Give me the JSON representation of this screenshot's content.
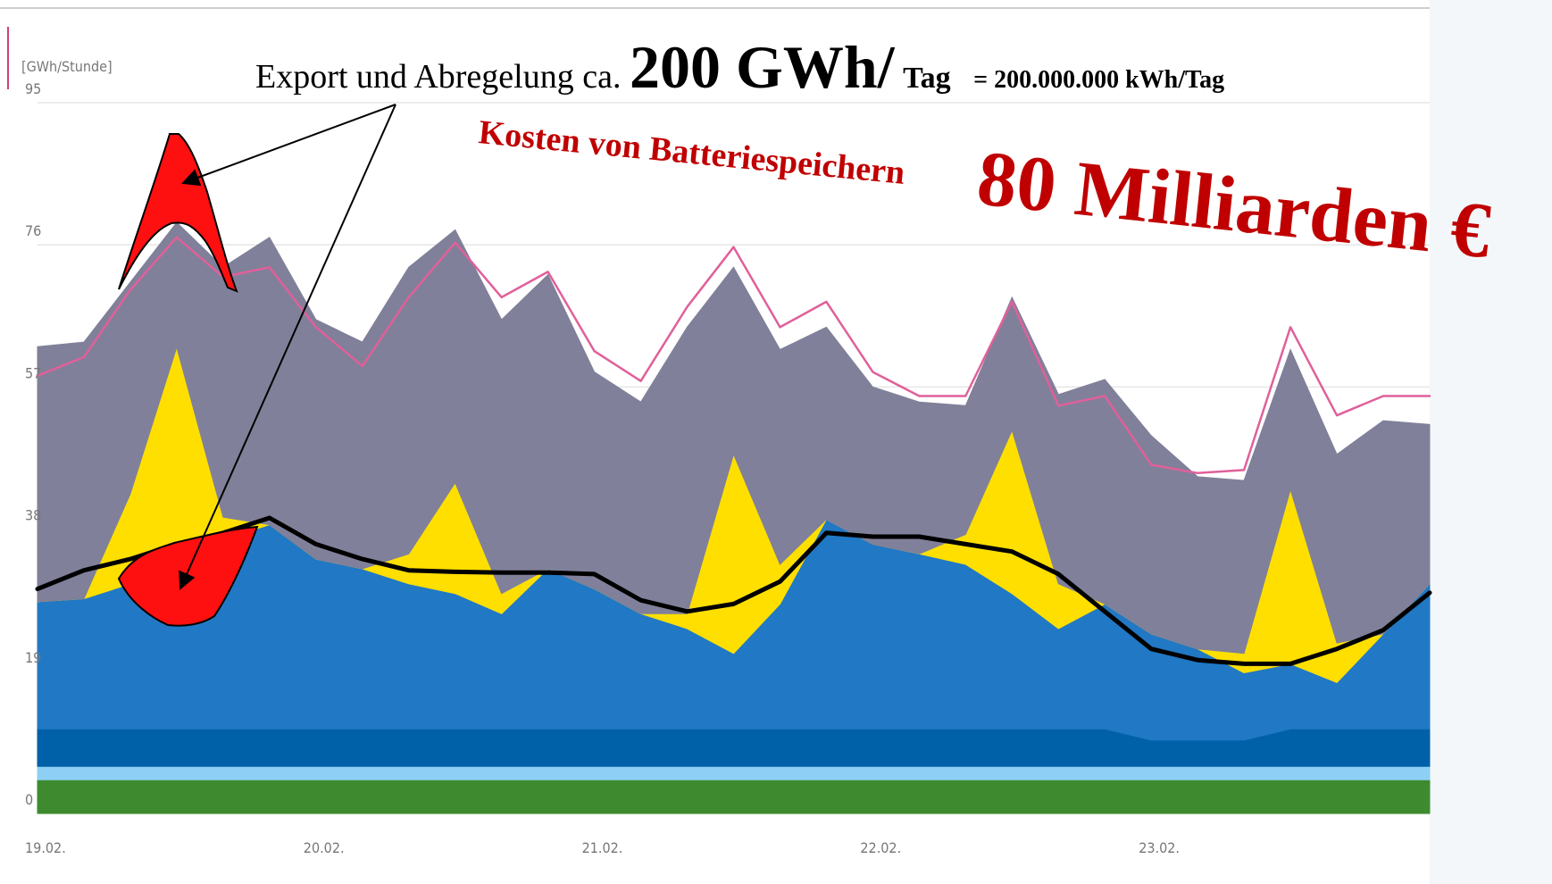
{
  "chart_data": {
    "type": "area",
    "stacked": true,
    "y_label": "[GWh/Stunde]",
    "categories": [
      "19.02.",
      null,
      null,
      null,
      null,
      null,
      "20.02.",
      null,
      null,
      null,
      null,
      null,
      "21.02.",
      null,
      null,
      null,
      null,
      null,
      "22.02.",
      null,
      null,
      null,
      null,
      null,
      "23.02.",
      null,
      null,
      null,
      null,
      null,
      null
    ],
    "ylim": [
      0,
      95
    ],
    "yticks": [
      0,
      19,
      38,
      57,
      76,
      95
    ],
    "grid": true,
    "series": [
      {
        "color": "#3e8b2f",
        "values": [
          4.5,
          4.5,
          4.5,
          4.5,
          4.5,
          4.5,
          4.5,
          4.5,
          4.5,
          4.5,
          4.5,
          4.5,
          4.5,
          4.5,
          4.5,
          4.5,
          4.5,
          4.5,
          4.5,
          4.5,
          4.5,
          4.5,
          4.5,
          4.5,
          4.5,
          4.5,
          4.5,
          4.5,
          4.5,
          4.5,
          4.5
        ]
      },
      {
        "color": "#8ed0f5",
        "values": [
          1.8,
          1.8,
          1.8,
          1.8,
          1.8,
          1.8,
          1.8,
          1.8,
          1.8,
          1.8,
          1.8,
          1.8,
          1.8,
          1.8,
          1.8,
          1.8,
          1.8,
          1.8,
          1.8,
          1.8,
          1.8,
          1.8,
          1.8,
          1.8,
          1.8,
          1.8,
          1.8,
          1.8,
          1.8,
          1.8,
          1.8
        ]
      },
      {
        "color": "#0060a8",
        "values": [
          5,
          5,
          5,
          5,
          5,
          5,
          5,
          5,
          5,
          5,
          5,
          5,
          5,
          5,
          5,
          5,
          5,
          5,
          5,
          5,
          5,
          5,
          5,
          5,
          3.5,
          3.5,
          3.5,
          5,
          5,
          5,
          5
        ]
      },
      {
        "color": "#2178c4",
        "values": [
          17,
          17.4,
          19.4,
          24,
          25.3,
          27.3,
          22.7,
          21.4,
          19.4,
          18.1,
          15.4,
          21.4,
          18.7,
          15.4,
          13.4,
          10.1,
          16.7,
          28,
          24.7,
          23.4,
          22,
          18.1,
          13.4,
          16.7,
          14.2,
          12.2,
          9,
          8.7,
          6.2,
          12.7,
          19.4
        ]
      },
      {
        "color": "#ffdf00",
        "values": [
          0,
          0,
          12,
          27,
          3,
          0,
          0,
          0,
          4,
          14.8,
          2.7,
          0,
          0,
          0,
          2,
          26.6,
          5.3,
          0,
          0,
          0,
          4,
          21.8,
          6,
          0,
          0,
          0,
          2.6,
          23.3,
          5.3,
          0,
          0
        ]
      },
      {
        "color": "#80809a",
        "values": [
          34.1,
          34.3,
          28.3,
          16.7,
          33.4,
          38.4,
          32,
          30.3,
          38.3,
          33.8,
          36.6,
          39.3,
          29,
          28.3,
          38.3,
          25,
          28.7,
          25.7,
          21,
          20.3,
          17.2,
          17.8,
          25.3,
          30,
          26.5,
          23,
          23.1,
          18.7,
          25.2,
          28.5,
          21.3
        ]
      }
    ],
    "lines": [
      {
        "color": "#e0609a",
        "values": [
          58.5,
          61,
          70,
          77,
          71.7,
          73,
          65,
          59.8,
          69,
          76.3,
          69,
          72.4,
          61.8,
          57.8,
          67.7,
          75.7,
          65,
          68.4,
          59,
          55.8,
          55.8,
          68.4,
          54.5,
          55.8,
          46.6,
          45.5,
          45.9,
          65,
          53.2,
          55.8,
          55.8
        ]
      },
      {
        "color": "#000000",
        "values": [
          30,
          32.5,
          34,
          36,
          37.5,
          39.5,
          36,
          34,
          32.5,
          32.3,
          32.2,
          32.2,
          32,
          28.5,
          27,
          28,
          31,
          37.5,
          37,
          37,
          36,
          35,
          32,
          27,
          22,
          20.5,
          20,
          20,
          22,
          24.5,
          29.5
        ]
      }
    ],
    "annotations": [
      "Export und Abregelung ca.",
      "200 GWh/",
      "Tag",
      "= 200.000.000 kWh/Tag",
      "Kosten von Batteriespeichern",
      "80 Milliarden €"
    ]
  }
}
